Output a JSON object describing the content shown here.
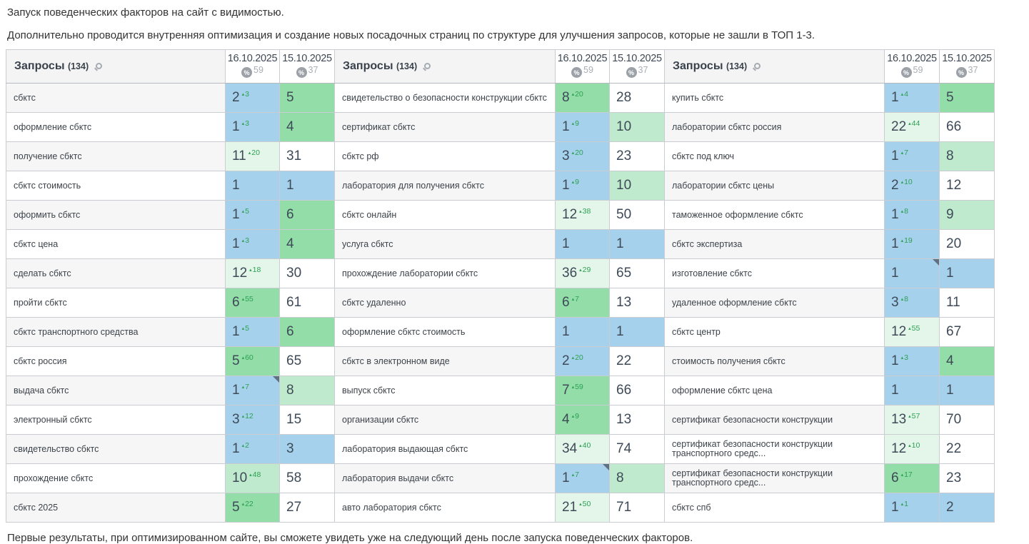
{
  "texts": {
    "line1": "Запуск поведенческих факторов на сайт с видимостью.",
    "line2": "Дополнительно проводится внутренняя оптимизация и создание новых посадочных страниц по структуре для улучшения запросов, которые не зашли в ТОП 1-3.",
    "footer": "Первые результаты, при оптимизированном сайте, вы сможете увидеть уже на следующий день после запуска поведенческих факторов."
  },
  "colors": {
    "top3_blue": "#a5d1ed",
    "green_strong": "#92dda8",
    "green_light": "#bfeacd",
    "green_faint": "#e4f6ea",
    "delta_green": "#2da153",
    "header_bg": "#f4f4f5",
    "row_shade": "#f6f6f7",
    "border": "#c9ccd0",
    "corner_marker": "#5f7181"
  },
  "table": {
    "header": {
      "queries_label": "Запросы",
      "queries_count": "(134)",
      "search_icon": "magnifier-icon",
      "percent_glyph": "%",
      "col1": {
        "date": "16.10.2025",
        "percent": "59"
      },
      "col2": {
        "date": "15.10.2025",
        "percent": "37"
      }
    },
    "groups": [
      {
        "zebra": "odd",
        "rows": [
          {
            "q": "сбктс",
            "v1": "2",
            "d1": "3",
            "c1": "b",
            "v2": "5",
            "c2": "g1"
          },
          {
            "q": "оформление сбктс",
            "v1": "1",
            "d1": "3",
            "c1": "b",
            "v2": "4",
            "c2": "g1"
          },
          {
            "q": "получение сбктс",
            "v1": "11",
            "d1": "20",
            "c1": "g3",
            "v2": "31",
            "c2": "w"
          },
          {
            "q": "сбктс стоимость",
            "v1": "1",
            "d1": "",
            "c1": "b",
            "v2": "1",
            "c2": "b"
          },
          {
            "q": "оформить сбктс",
            "v1": "1",
            "d1": "5",
            "c1": "b",
            "v2": "6",
            "c2": "g1"
          },
          {
            "q": "сбктс цена",
            "v1": "1",
            "d1": "3",
            "c1": "b",
            "v2": "4",
            "c2": "g1"
          },
          {
            "q": "сделать сбктс",
            "v1": "12",
            "d1": "18",
            "c1": "g3",
            "v2": "30",
            "c2": "w"
          },
          {
            "q": "пройти сбктс",
            "v1": "6",
            "d1": "55",
            "c1": "g1",
            "v2": "61",
            "c2": "w"
          },
          {
            "q": "сбктс транспортного средства",
            "v1": "1",
            "d1": "5",
            "c1": "b",
            "v2": "6",
            "c2": "g1"
          },
          {
            "q": "сбктс россия",
            "v1": "5",
            "d1": "60",
            "c1": "g1",
            "v2": "65",
            "c2": "w"
          },
          {
            "q": "выдача сбктс",
            "v1": "1",
            "d1": "7",
            "c1": "b",
            "marker1": true,
            "v2": "8",
            "c2": "g2"
          },
          {
            "q": "электронный сбктс",
            "v1": "3",
            "d1": "12",
            "c1": "b",
            "v2": "15",
            "c2": "w"
          },
          {
            "q": "свидетельство сбктс",
            "v1": "1",
            "d1": "2",
            "c1": "b",
            "v2": "3",
            "c2": "b"
          },
          {
            "q": "прохождение сбктс",
            "v1": "10",
            "d1": "48",
            "c1": "g2",
            "v2": "58",
            "c2": "w"
          },
          {
            "q": "сбктс 2025",
            "v1": "5",
            "d1": "22",
            "c1": "g1",
            "v2": "27",
            "c2": "w"
          }
        ]
      },
      {
        "zebra": "even",
        "rows": [
          {
            "q": "свидетельство о безопасности конструкции сбктс",
            "v1": "8",
            "d1": "20",
            "c1": "g1",
            "v2": "28",
            "c2": "w"
          },
          {
            "q": "сертификат сбктс",
            "v1": "1",
            "d1": "9",
            "c1": "b",
            "v2": "10",
            "c2": "g2"
          },
          {
            "q": "сбктс рф",
            "v1": "3",
            "d1": "20",
            "c1": "b",
            "v2": "23",
            "c2": "w"
          },
          {
            "q": "лаборатория для получения сбктс",
            "v1": "1",
            "d1": "9",
            "c1": "b",
            "v2": "10",
            "c2": "g2"
          },
          {
            "q": "сбктс онлайн",
            "v1": "12",
            "d1": "38",
            "c1": "g3",
            "v2": "50",
            "c2": "w"
          },
          {
            "q": "услуга сбктс",
            "v1": "1",
            "d1": "",
            "c1": "b",
            "v2": "1",
            "c2": "b"
          },
          {
            "q": "прохождение лаборатории сбктс",
            "v1": "36",
            "d1": "29",
            "c1": "g3",
            "v2": "65",
            "c2": "w"
          },
          {
            "q": "сбктс удаленно",
            "v1": "6",
            "d1": "7",
            "c1": "g1",
            "v2": "13",
            "c2": "w"
          },
          {
            "q": "оформление сбктс стоимость",
            "v1": "1",
            "d1": "",
            "c1": "b",
            "v2": "1",
            "c2": "b"
          },
          {
            "q": "сбктс в электронном виде",
            "v1": "2",
            "d1": "20",
            "c1": "b",
            "v2": "22",
            "c2": "w"
          },
          {
            "q": "выпуск сбктс",
            "v1": "7",
            "d1": "59",
            "c1": "g1",
            "v2": "66",
            "c2": "w"
          },
          {
            "q": "организации сбктс",
            "v1": "4",
            "d1": "9",
            "c1": "g1",
            "v2": "13",
            "c2": "w"
          },
          {
            "q": "лаборатория выдающая сбктс",
            "v1": "34",
            "d1": "40",
            "c1": "g3",
            "v2": "74",
            "c2": "w"
          },
          {
            "q": "лаборатория выдачи сбктс",
            "v1": "1",
            "d1": "7",
            "c1": "b",
            "marker1": true,
            "v2": "8",
            "c2": "g2"
          },
          {
            "q": "авто лаборатория сбктс",
            "v1": "21",
            "d1": "50",
            "c1": "g3",
            "v2": "71",
            "c2": "w"
          }
        ]
      },
      {
        "zebra": "even",
        "rows": [
          {
            "q": "купить сбктс",
            "v1": "1",
            "d1": "4",
            "c1": "b",
            "v2": "5",
            "c2": "g1"
          },
          {
            "q": "лаборатории сбктс россия",
            "v1": "22",
            "d1": "44",
            "c1": "g3",
            "v2": "66",
            "c2": "w"
          },
          {
            "q": "сбктс под ключ",
            "v1": "1",
            "d1": "7",
            "c1": "b",
            "v2": "8",
            "c2": "g2"
          },
          {
            "q": "лаборатории сбктс цены",
            "v1": "2",
            "d1": "10",
            "c1": "b",
            "v2": "12",
            "c2": "w"
          },
          {
            "q": "таможенное оформление сбктс",
            "v1": "1",
            "d1": "8",
            "c1": "b",
            "v2": "9",
            "c2": "g2"
          },
          {
            "q": "сбктс экспертиза",
            "v1": "1",
            "d1": "19",
            "c1": "b",
            "v2": "20",
            "c2": "w"
          },
          {
            "q": "изготовление сбктс",
            "v1": "1",
            "d1": "",
            "c1": "b",
            "marker1": true,
            "v2": "1",
            "c2": "b"
          },
          {
            "q": "удаленное оформление сбктс",
            "v1": "3",
            "d1": "8",
            "c1": "b",
            "v2": "11",
            "c2": "w"
          },
          {
            "q": "сбктс центр",
            "v1": "12",
            "d1": "55",
            "c1": "g3",
            "v2": "67",
            "c2": "w"
          },
          {
            "q": "стоимость получения сбктс",
            "v1": "1",
            "d1": "3",
            "c1": "b",
            "v2": "4",
            "c2": "g1"
          },
          {
            "q": "оформление сбктс цена",
            "v1": "1",
            "d1": "",
            "c1": "b",
            "v2": "1",
            "c2": "b"
          },
          {
            "q": "сертификат безопасности конструкции",
            "v1": "13",
            "d1": "57",
            "c1": "g3",
            "v2": "70",
            "c2": "w"
          },
          {
            "q": "сертификат безопасности конструкции транспортного средс...",
            "v1": "12",
            "d1": "10",
            "c1": "g3",
            "v2": "22",
            "c2": "w"
          },
          {
            "q": "сертификат безопасности конструкции транспортного средс...",
            "v1": "6",
            "d1": "17",
            "c1": "g1",
            "v2": "23",
            "c2": "w"
          },
          {
            "q": "сбктс спб",
            "v1": "1",
            "d1": "1",
            "c1": "b",
            "v2": "2",
            "c2": "b"
          }
        ]
      }
    ]
  }
}
